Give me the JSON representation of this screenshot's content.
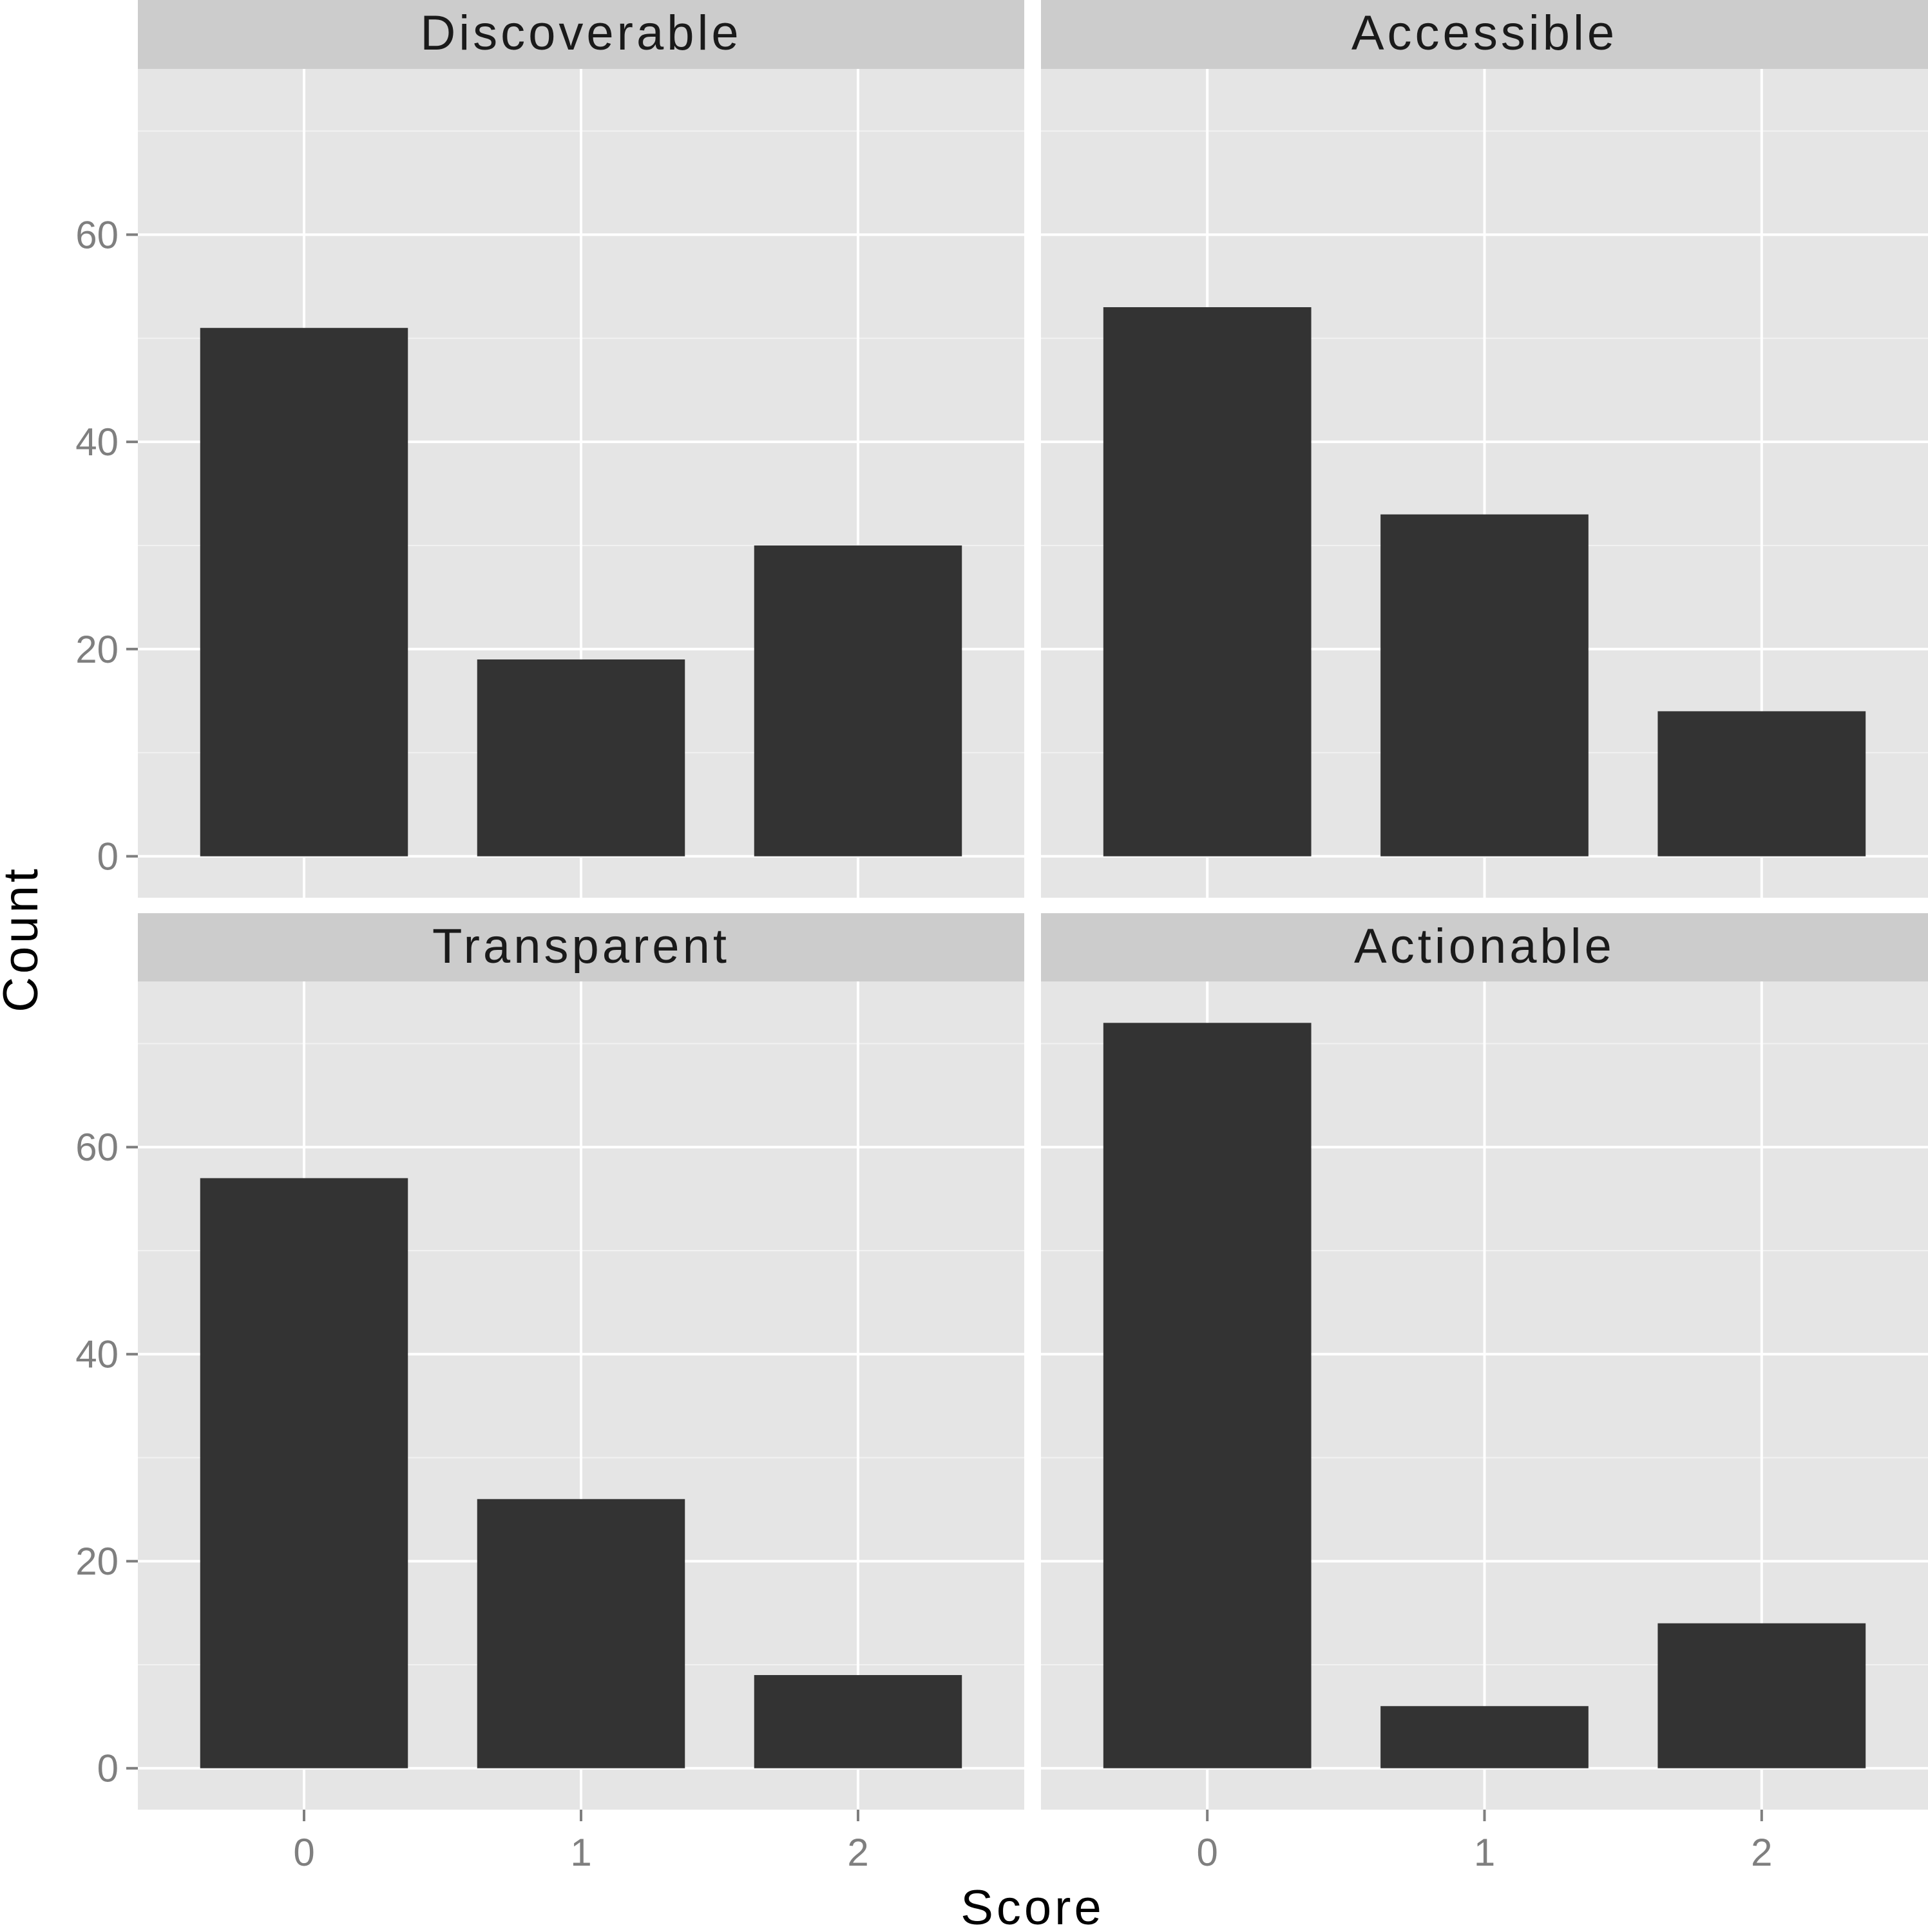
{
  "chart_data": {
    "type": "bar",
    "layout": "facet-grid 2x2",
    "xlabel": "Score",
    "ylabel": "Count",
    "categories": [
      "0",
      "1",
      "2"
    ],
    "ylim": [
      -4,
      76
    ],
    "yticks": [
      "0",
      "20",
      "40",
      "60"
    ],
    "grid": true,
    "panels": [
      {
        "title": "Discoverable",
        "values": [
          51,
          19,
          30
        ]
      },
      {
        "title": "Accessible",
        "values": [
          53,
          33,
          14
        ]
      },
      {
        "title": "Transparent",
        "values": [
          57,
          26,
          9
        ]
      },
      {
        "title": "Actionable",
        "values": [
          72,
          6,
          14
        ]
      }
    ]
  },
  "colors": {
    "panel_background": "#e5e5e5",
    "strip_background": "#cccccc",
    "major_grid": "#ffffff",
    "minor_grid": "#f2f2f2",
    "bar_fill": "#333333",
    "tick_text": "#7f7f7f",
    "tick_mark": "#7f7f7f"
  }
}
